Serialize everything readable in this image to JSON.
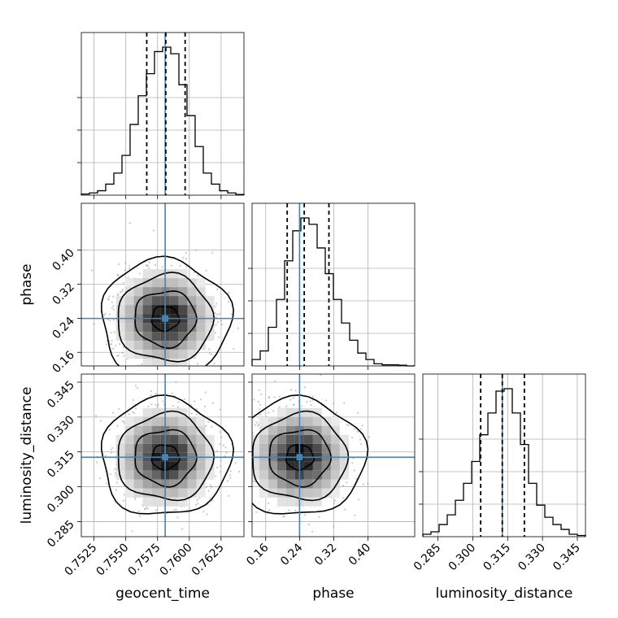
{
  "chart_data": {
    "type": "corner",
    "parameters": [
      "geocent_time",
      "phase",
      "luminosity_distance"
    ],
    "ranges": {
      "geocent_time": [
        0.7515,
        0.7643
      ],
      "phase": [
        0.128,
        0.51
      ],
      "luminosity_distance": [
        0.2785,
        0.3485
      ]
    },
    "ticks": {
      "geocent_time": [
        "0.7525",
        "0.7550",
        "0.7575",
        "0.7600",
        "0.7625"
      ],
      "phase": [
        "0.16",
        "0.24",
        "0.32",
        "0.40"
      ],
      "luminosity_distance": [
        "0.285",
        "0.300",
        "0.315",
        "0.330",
        "0.345"
      ]
    },
    "truths": {
      "geocent_time": 0.7581,
      "phase": 0.2395,
      "luminosity_distance": 0.3127
    },
    "quantiles": {
      "geocent_time": [
        0.75665,
        0.75815,
        0.75967
      ],
      "phase": [
        0.2105,
        0.2505,
        0.3085
      ],
      "luminosity_distance": [
        0.3034,
        0.3127,
        0.3222
      ]
    },
    "histograms": {
      "geocent_time": {
        "edges_start": 0.7515,
        "bin_width": 0.00064,
        "counts": [
          0.5,
          1,
          2,
          5,
          10,
          18,
          32,
          45,
          55,
          65,
          67,
          64,
          50,
          36,
          22,
          10,
          5,
          2,
          1,
          0.3
        ]
      },
      "phase": {
        "edges_start": 0.128,
        "bin_width": 0.0191,
        "counts": [
          3,
          7,
          18,
          31,
          49,
          63,
          69,
          66,
          55,
          43,
          31,
          20,
          12,
          6,
          3,
          1,
          0.5,
          0.5,
          0.3,
          0
        ]
      },
      "luminosity_distance": {
        "edges_start": 0.2785,
        "bin_width": 0.0035,
        "counts": [
          1,
          2,
          5,
          9,
          15,
          22,
          31,
          42,
          51,
          60,
          61,
          51,
          38,
          22,
          13,
          8,
          5,
          3,
          1,
          0.5
        ]
      }
    },
    "grid": true
  }
}
